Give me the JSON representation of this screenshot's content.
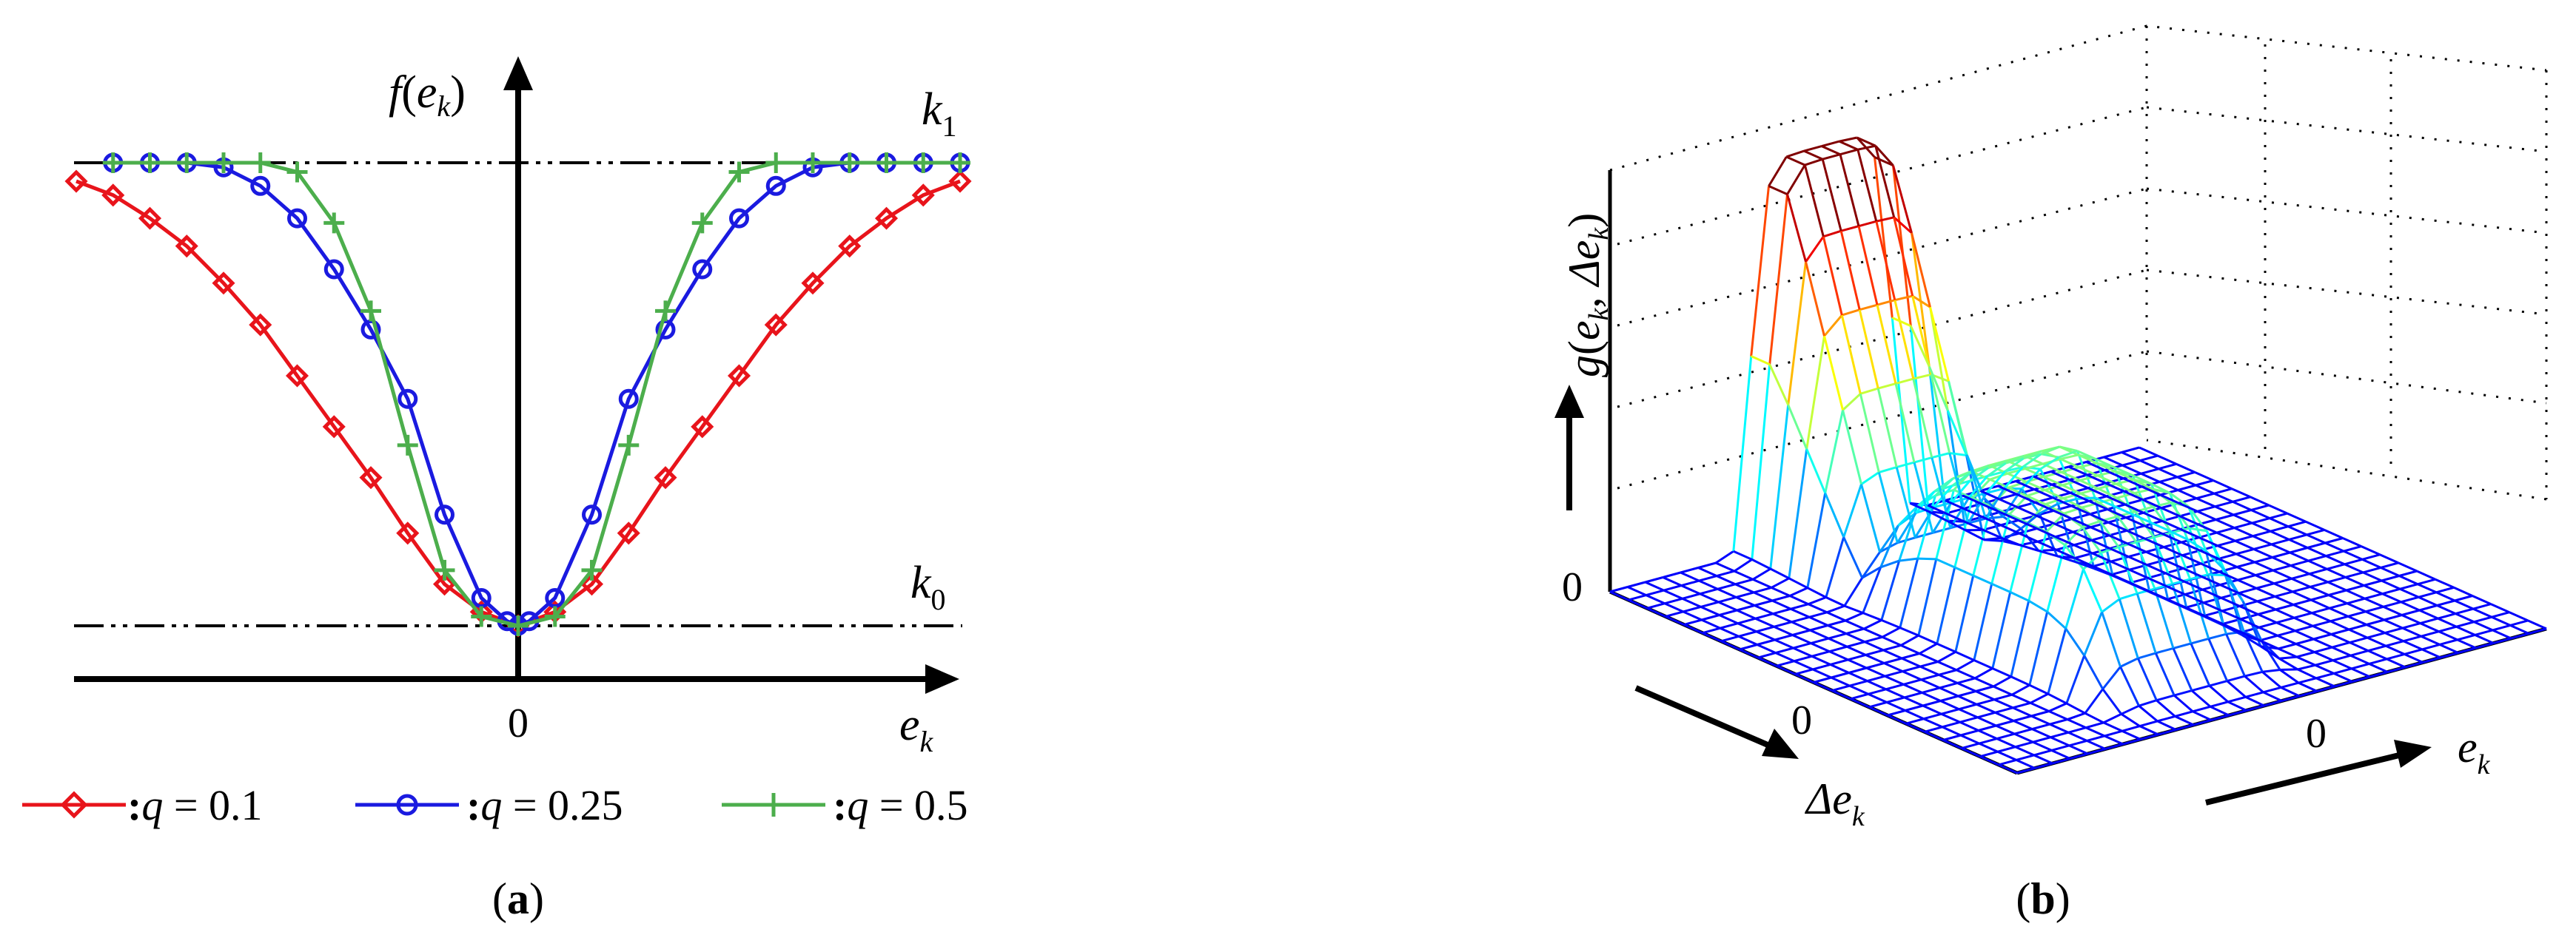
{
  "panels": {
    "a": {
      "caption_open": "(",
      "caption_letter": "a",
      "caption_close": ")"
    },
    "b": {
      "caption_open": "(",
      "caption_letter": "b",
      "caption_close": ")"
    }
  },
  "colors": {
    "q01": "#e8141b",
    "q025": "#1a1ae0",
    "q05": "#4cae4c",
    "axis": "#000000"
  },
  "chart_data": [
    {
      "type": "line",
      "title": "",
      "ylabel_f": "f",
      "ylabel_open": "(",
      "ylabel_e": "e",
      "ylabel_sub": "k",
      "ylabel_close": ")",
      "xlabel_e": "e",
      "xlabel_sub": "k",
      "x_tick_zero": "0",
      "ref_lines": [
        {
          "label_main": "k",
          "label_sub": "1",
          "y": 1.0
        },
        {
          "label_main": "k",
          "label_sub": "0",
          "y": 0.0
        }
      ],
      "xlim": [
        -1.2,
        1.2
      ],
      "ylim": [
        -0.12,
        1.2
      ],
      "legend_placement": "bottom",
      "series": [
        {
          "name_colon": ":",
          "name_var": "q",
          "name_rest": " = 0.1",
          "q": 0.1,
          "marker": "diamond",
          "color": "#e8141b",
          "x": [
            -1.2,
            -1.1,
            -1.0,
            -0.9,
            -0.8,
            -0.7,
            -0.6,
            -0.5,
            -0.4,
            -0.3,
            -0.2,
            -0.1,
            0,
            0.1,
            0.2,
            0.3,
            0.4,
            0.5,
            0.6,
            0.7,
            0.8,
            0.9,
            1.0,
            1.1,
            1.2
          ],
          "y": [
            0.96,
            0.93,
            0.88,
            0.82,
            0.74,
            0.65,
            0.54,
            0.43,
            0.32,
            0.2,
            0.09,
            0.03,
            0,
            0.03,
            0.09,
            0.2,
            0.32,
            0.43,
            0.54,
            0.65,
            0.74,
            0.82,
            0.88,
            0.93,
            0.96
          ]
        },
        {
          "name_colon": ":",
          "name_var": "q",
          "name_rest": " = 0.25",
          "q": 0.25,
          "marker": "circle",
          "color": "#1a1ae0",
          "x": [
            -1.1,
            -1.0,
            -0.9,
            -0.8,
            -0.7,
            -0.6,
            -0.5,
            -0.4,
            -0.3,
            -0.2,
            -0.1,
            -0.03,
            0,
            0.03,
            0.1,
            0.2,
            0.3,
            0.4,
            0.5,
            0.6,
            0.7,
            0.8,
            0.9,
            1.0,
            1.1,
            1.2
          ],
          "y": [
            1.0,
            1.0,
            1.0,
            0.99,
            0.95,
            0.88,
            0.77,
            0.64,
            0.49,
            0.24,
            0.06,
            0.01,
            0,
            0.01,
            0.06,
            0.24,
            0.49,
            0.64,
            0.77,
            0.88,
            0.95,
            0.99,
            1.0,
            1.0,
            1.0,
            1.0
          ]
        },
        {
          "name_colon": ":",
          "name_var": "q",
          "name_rest": " = 0.5",
          "q": 0.5,
          "marker": "plus",
          "color": "#4cae4c",
          "x": [
            -1.1,
            -1.0,
            -0.9,
            -0.8,
            -0.7,
            -0.6,
            -0.5,
            -0.4,
            -0.3,
            -0.2,
            -0.1,
            0,
            0.1,
            0.2,
            0.3,
            0.4,
            0.5,
            0.6,
            0.7,
            0.8,
            0.9,
            1.0,
            1.1,
            1.2
          ],
          "y": [
            1.0,
            1.0,
            1.0,
            1.0,
            1.0,
            0.98,
            0.87,
            0.68,
            0.39,
            0.12,
            0.02,
            0,
            0.02,
            0.12,
            0.39,
            0.68,
            0.87,
            0.98,
            1.0,
            1.0,
            1.0,
            1.0,
            1.0,
            1.0
          ]
        }
      ]
    },
    {
      "type": "surface",
      "title": "",
      "zlabel_g": "g",
      "zlabel_open": "(",
      "zlabel_e": "e",
      "zlabel_sub": "k",
      "zlabel_comma": ", ",
      "zlabel_de": "Δe",
      "zlabel_sub2": "k",
      "zlabel_close": ")",
      "z_tick_zero": "0",
      "x_label_e": "e",
      "x_label_sub": "k",
      "x_tick_zero": "0",
      "y_label_de": "Δe",
      "y_label_sub": "k",
      "y_tick_zero": "0",
      "grid": true,
      "colormap": "jet"
    }
  ]
}
